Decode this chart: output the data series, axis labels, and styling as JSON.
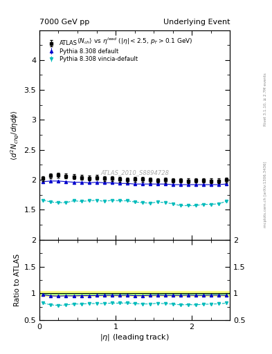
{
  "title_left": "7000 GeV pp",
  "title_right": "Underlying Event",
  "plot_title": "$\\langle N_{ch}\\rangle$ vs $\\eta^{lead}$ ($|\\eta| < 2.5$, $p_T > 0.1$ GeV)",
  "xlabel": "$|\\eta|$ (leading track)",
  "ylabel_main": "$\\langle d^2 N_{chg}/d\\eta d\\phi\\rangle$",
  "ylabel_ratio": "Ratio to ATLAS",
  "right_label_top": "Rivet 3.1.10, ≥ 2.7M events",
  "right_label_bot": "mcplots.cern.ch [arXiv:1306.3436]",
  "watermark": "ATLAS_2010_S8894728",
  "ylim_main": [
    1.0,
    4.5
  ],
  "ylim_ratio": [
    0.5,
    2.0
  ],
  "xlim": [
    0.0,
    2.5
  ],
  "atlas_color": "#000000",
  "pythia_default_color": "#0000cc",
  "pythia_vincia_color": "#00bbbb",
  "band_yellow": "#ffff80",
  "band_green": "#80ff80",
  "ratio_line_color": "#000000",
  "atlas_data_x": [
    0.05,
    0.15,
    0.25,
    0.35,
    0.45,
    0.55,
    0.65,
    0.75,
    0.85,
    0.95,
    1.05,
    1.15,
    1.25,
    1.35,
    1.45,
    1.55,
    1.65,
    1.75,
    1.85,
    1.95,
    2.05,
    2.15,
    2.25,
    2.35,
    2.45
  ],
  "atlas_data_y": [
    2.02,
    2.07,
    2.08,
    2.06,
    2.05,
    2.04,
    2.03,
    2.04,
    2.02,
    2.02,
    2.01,
    2.0,
    2.01,
    2.01,
    2.0,
    1.99,
    2.0,
    1.99,
    1.99,
    1.98,
    1.99,
    1.99,
    1.98,
    1.98,
    2.0
  ],
  "atlas_data_yerr": [
    0.04,
    0.04,
    0.04,
    0.04,
    0.04,
    0.04,
    0.04,
    0.04,
    0.04,
    0.04,
    0.04,
    0.04,
    0.04,
    0.04,
    0.04,
    0.04,
    0.04,
    0.04,
    0.04,
    0.04,
    0.04,
    0.04,
    0.04,
    0.04,
    0.04
  ],
  "pythia_default_y": [
    1.97,
    1.98,
    1.98,
    1.97,
    1.96,
    1.96,
    1.95,
    1.96,
    1.95,
    1.95,
    1.94,
    1.94,
    1.93,
    1.93,
    1.93,
    1.93,
    1.93,
    1.92,
    1.92,
    1.92,
    1.92,
    1.92,
    1.92,
    1.92,
    1.93
  ],
  "pythia_vincia_y": [
    1.66,
    1.63,
    1.62,
    1.62,
    1.65,
    1.64,
    1.65,
    1.66,
    1.64,
    1.66,
    1.65,
    1.65,
    1.63,
    1.62,
    1.61,
    1.63,
    1.62,
    1.6,
    1.57,
    1.57,
    1.57,
    1.59,
    1.59,
    1.6,
    1.64
  ],
  "ratio_pythia_default_y": [
    0.976,
    0.956,
    0.952,
    0.957,
    0.956,
    0.961,
    0.961,
    0.962,
    0.966,
    0.967,
    0.965,
    0.97,
    0.96,
    0.96,
    0.965,
    0.97,
    0.965,
    0.965,
    0.965,
    0.97,
    0.965,
    0.965,
    0.97,
    0.97,
    0.965
  ],
  "ratio_pythia_vincia_y": [
    0.822,
    0.788,
    0.779,
    0.787,
    0.805,
    0.804,
    0.813,
    0.814,
    0.812,
    0.822,
    0.82,
    0.825,
    0.811,
    0.806,
    0.805,
    0.819,
    0.81,
    0.804,
    0.789,
    0.793,
    0.789,
    0.799,
    0.803,
    0.808,
    0.82
  ],
  "yticks_main": [
    1.5,
    2.0,
    2.5,
    3.0,
    3.5,
    4.0
  ],
  "yticks_ratio": [
    0.5,
    1.0,
    1.5,
    2.0
  ],
  "xticks": [
    0,
    1,
    2
  ],
  "band_yellow_lo": 0.96,
  "band_yellow_hi": 1.04,
  "band_green_lo": 0.99,
  "band_green_hi": 1.01
}
